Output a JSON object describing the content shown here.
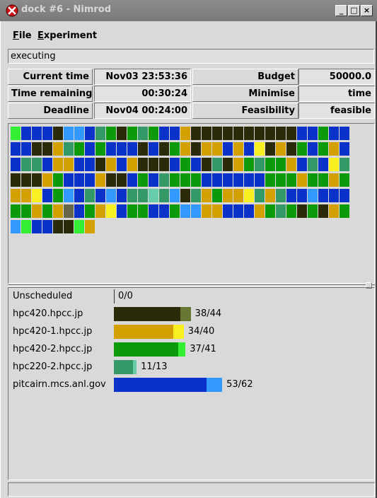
{
  "window": {
    "title": "dock #6 - Nimrod"
  },
  "menu": [
    "File",
    "Experiment"
  ],
  "status": "executing",
  "info": [
    [
      "Current time",
      "Nov03 23:53:36",
      "Budget",
      "50000.0"
    ],
    [
      "Time remaining",
      "00:30:24",
      "Minimise",
      "time"
    ],
    [
      "Deadline",
      "Nov04 00:24:00",
      "Feasibility",
      "feasible"
    ]
  ],
  "jobs": {
    "palette": {
      "D": "#2b2b0a",
      "d": "#66664a",
      "G": "#d4a000",
      "g": "#f8f020",
      "N": "#0a9a0a",
      "n": "#33ee33",
      "T": "#339966",
      "t": "#66ccaa",
      "B": "#0a32c8",
      "b": "#3399ff"
    },
    "rows": [
      "nBBBDbbBTNDNTNBBGDDDDDDDDDDBBNBB",
      "BBDDGTNBNBBBDBDNGDGGBGBgDGDNBNGB",
      "BTTBGGBBDGBGDDDBNBDTDGNTNNGBTBgT",
      "DDDGNBBBGDDBNBTNNNBBBBBBNNNGNNGN",
      "GGgBNbBTBbBTTtTbDTGNGGgTGTBBbBBB",
      "NNGNGdBNGgBNNBBNbbGGBBBGNTNDNDGN",
      "bnBBDDnG"
    ]
  },
  "hosts": [
    {
      "name": "Unscheduled",
      "done": 0,
      "total": 0,
      "label": "0/0"
    },
    {
      "name": "hpc420.hpcc.jp",
      "done": 38,
      "total": 44,
      "label": "38/44",
      "color": "#2b2b0a",
      "running_color": "#667733"
    },
    {
      "name": "hpc420-1.hpcc.jp",
      "done": 34,
      "total": 40,
      "label": "34/40",
      "color": "#d4a000",
      "running_color": "#f8f020"
    },
    {
      "name": "hpc420-2.hpcc.jp",
      "done": 37,
      "total": 41,
      "label": "37/41",
      "color": "#0a9a0a",
      "running_color": "#33ee33"
    },
    {
      "name": "hpc220-2.hpcc.jp",
      "done": 11,
      "total": 13,
      "label": "11/13",
      "color": "#339966",
      "running_color": "#66ccaa"
    },
    {
      "name": "pitcairn.mcs.anl.gov",
      "done": 53,
      "total": 62,
      "label": "53/62",
      "color": "#0a32c8",
      "running_color": "#3399ff"
    }
  ]
}
